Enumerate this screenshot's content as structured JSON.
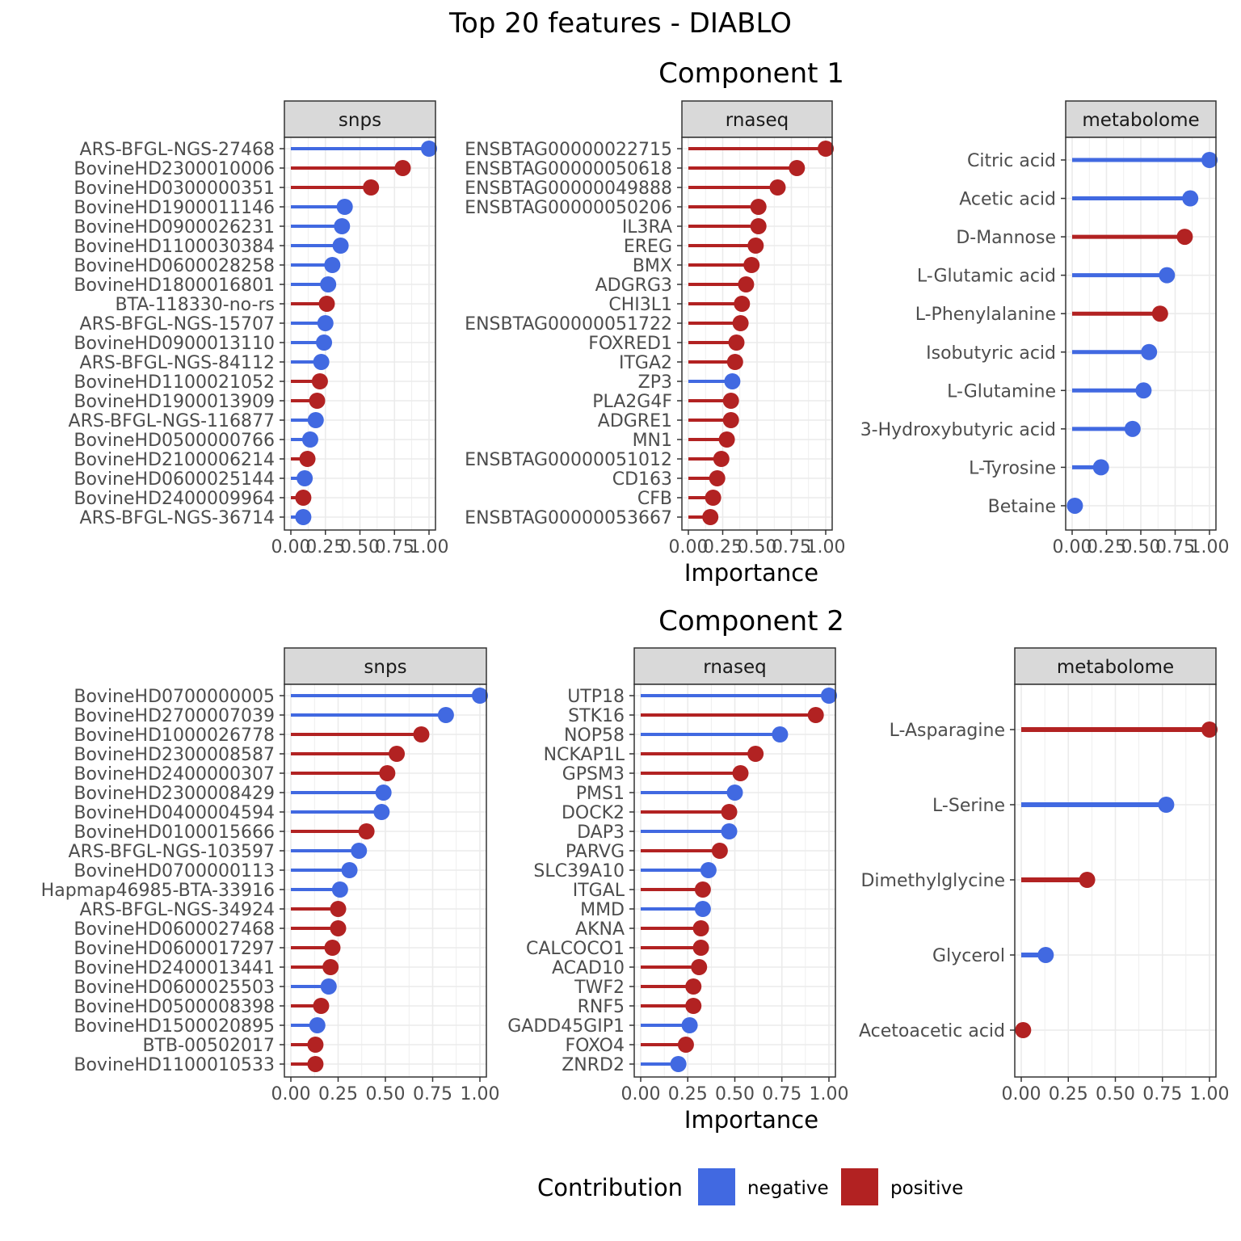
{
  "title": "Top 20 features - DIABLO",
  "x_axis_label": "Importance",
  "legend": {
    "title": "Contribution",
    "items": [
      {
        "label": "negative",
        "color": "#4169E1"
      },
      {
        "label": "positive",
        "color": "#B22222"
      }
    ]
  },
  "colors": {
    "negative": "#4169E1",
    "positive": "#B22222",
    "strip": "#D9D9D9",
    "grid": "#EBEBEB"
  },
  "chart_data": [
    {
      "type": "lollipop",
      "component": "Component 1",
      "block": "snps",
      "xlim": [
        0,
        1
      ],
      "x_ticks": [
        "0.00",
        "0.25",
        "0.50",
        "0.75",
        "1.00"
      ],
      "features": [
        "ARS-BFGL-NGS-27468",
        "BovineHD2300010006",
        "BovineHD0300000351",
        "BovineHD1900011146",
        "BovineHD0900026231",
        "BovineHD1100030384",
        "BovineHD0600028258",
        "BovineHD1800016801",
        "BTA-118330-no-rs",
        "ARS-BFGL-NGS-15707",
        "BovineHD0900013110",
        "ARS-BFGL-NGS-84112",
        "BovineHD1100021052",
        "BovineHD1900013909",
        "ARS-BFGL-NGS-116877",
        "BovineHD0500000766",
        "BovineHD2100006214",
        "BovineHD0600025144",
        "BovineHD2400009964",
        "ARS-BFGL-NGS-36714"
      ],
      "values": [
        1.0,
        0.81,
        0.58,
        0.39,
        0.37,
        0.36,
        0.3,
        0.27,
        0.26,
        0.25,
        0.24,
        0.22,
        0.21,
        0.19,
        0.18,
        0.14,
        0.12,
        0.1,
        0.09,
        0.09
      ],
      "contribution": [
        "negative",
        "positive",
        "positive",
        "negative",
        "negative",
        "negative",
        "negative",
        "negative",
        "positive",
        "negative",
        "negative",
        "negative",
        "positive",
        "positive",
        "negative",
        "negative",
        "positive",
        "negative",
        "positive",
        "negative"
      ]
    },
    {
      "type": "lollipop",
      "component": "Component 1",
      "block": "rnaseq",
      "xlim": [
        0,
        1
      ],
      "x_ticks": [
        "0.00",
        "0.25",
        "0.50",
        "0.75",
        "1.00"
      ],
      "features": [
        "ENSBTAG00000022715",
        "ENSBTAG00000050618",
        "ENSBTAG00000049888",
        "ENSBTAG00000050206",
        "IL3RA",
        "EREG",
        "BMX",
        "ADGRG3",
        "CHI3L1",
        "ENSBTAG00000051722",
        "FOXRED1",
        "ITGA2",
        "ZP3",
        "PLA2G4F",
        "ADGRE1",
        "MN1",
        "ENSBTAG00000051012",
        "CD163",
        "CFB",
        "ENSBTAG00000053667"
      ],
      "values": [
        1.0,
        0.79,
        0.65,
        0.51,
        0.51,
        0.49,
        0.46,
        0.42,
        0.39,
        0.38,
        0.35,
        0.34,
        0.32,
        0.31,
        0.31,
        0.28,
        0.24,
        0.21,
        0.18,
        0.16
      ],
      "contribution": [
        "positive",
        "positive",
        "positive",
        "positive",
        "positive",
        "positive",
        "positive",
        "positive",
        "positive",
        "positive",
        "positive",
        "positive",
        "negative",
        "positive",
        "positive",
        "positive",
        "positive",
        "positive",
        "positive",
        "positive"
      ]
    },
    {
      "type": "lollipop",
      "component": "Component 1",
      "block": "metabolome",
      "xlim": [
        0,
        1
      ],
      "x_ticks": [
        "0.00",
        "0.25",
        "0.50",
        "0.75",
        "1.00"
      ],
      "features": [
        "Citric acid",
        "Acetic acid",
        "D-Mannose",
        "L-Glutamic acid",
        "L-Phenylalanine",
        "Isobutyric acid",
        "L-Glutamine",
        "3-Hydroxybutyric acid",
        "L-Tyrosine",
        "Betaine"
      ],
      "values": [
        1.0,
        0.86,
        0.82,
        0.69,
        0.64,
        0.56,
        0.52,
        0.44,
        0.21,
        0.02
      ],
      "contribution": [
        "negative",
        "negative",
        "positive",
        "negative",
        "positive",
        "negative",
        "negative",
        "negative",
        "negative",
        "negative"
      ]
    },
    {
      "type": "lollipop",
      "component": "Component 2",
      "block": "snps",
      "xlim": [
        0,
        1
      ],
      "x_ticks": [
        "0.00",
        "0.25",
        "0.50",
        "0.75",
        "1.00"
      ],
      "features": [
        "BovineHD0700000005",
        "BovineHD2700007039",
        "BovineHD1000026778",
        "BovineHD2300008587",
        "BovineHD2400000307",
        "BovineHD2300008429",
        "BovineHD0400004594",
        "BovineHD0100015666",
        "ARS-BFGL-NGS-103597",
        "BovineHD0700000113",
        "Hapmap46985-BTA-33916",
        "ARS-BFGL-NGS-34924",
        "BovineHD0600027468",
        "BovineHD0600017297",
        "BovineHD2400013441",
        "BovineHD0600025503",
        "BovineHD0500008398",
        "BovineHD1500020895",
        "BTB-00502017",
        "BovineHD1100010533"
      ],
      "values": [
        1.0,
        0.82,
        0.69,
        0.56,
        0.51,
        0.49,
        0.48,
        0.4,
        0.36,
        0.31,
        0.26,
        0.25,
        0.25,
        0.22,
        0.21,
        0.2,
        0.16,
        0.14,
        0.13,
        0.13
      ],
      "contribution": [
        "negative",
        "negative",
        "positive",
        "positive",
        "positive",
        "negative",
        "negative",
        "positive",
        "negative",
        "negative",
        "negative",
        "positive",
        "positive",
        "positive",
        "positive",
        "negative",
        "positive",
        "negative",
        "positive",
        "positive"
      ]
    },
    {
      "type": "lollipop",
      "component": "Component 2",
      "block": "rnaseq",
      "xlim": [
        0,
        1
      ],
      "x_ticks": [
        "0.00",
        "0.25",
        "0.50",
        "0.75",
        "1.00"
      ],
      "features": [
        "UTP18",
        "STK16",
        "NOP58",
        "NCKAP1L",
        "GPSM3",
        "PMS1",
        "DOCK2",
        "DAP3",
        "PARVG",
        "SLC39A10",
        "ITGAL",
        "MMD",
        "AKNA",
        "CALCOCO1",
        "ACAD10",
        "TWF2",
        "RNF5",
        "GADD45GIP1",
        "FOXO4",
        "ZNRD2"
      ],
      "values": [
        1.0,
        0.93,
        0.74,
        0.61,
        0.53,
        0.5,
        0.47,
        0.47,
        0.42,
        0.36,
        0.33,
        0.33,
        0.32,
        0.32,
        0.31,
        0.28,
        0.28,
        0.26,
        0.24,
        0.2
      ],
      "contribution": [
        "negative",
        "positive",
        "negative",
        "positive",
        "positive",
        "negative",
        "positive",
        "negative",
        "positive",
        "negative",
        "positive",
        "negative",
        "positive",
        "positive",
        "positive",
        "positive",
        "positive",
        "negative",
        "positive",
        "negative"
      ]
    },
    {
      "type": "lollipop",
      "component": "Component 2",
      "block": "metabolome",
      "xlim": [
        0,
        1
      ],
      "x_ticks": [
        "0.00",
        "0.25",
        "0.50",
        "0.75",
        "1.00"
      ],
      "features": [
        "L-Asparagine",
        "L-Serine",
        "Dimethylglycine",
        "Glycerol",
        "Acetoacetic acid"
      ],
      "values": [
        1.0,
        0.77,
        0.35,
        0.13,
        0.01
      ],
      "contribution": [
        "positive",
        "negative",
        "positive",
        "negative",
        "positive"
      ]
    }
  ]
}
